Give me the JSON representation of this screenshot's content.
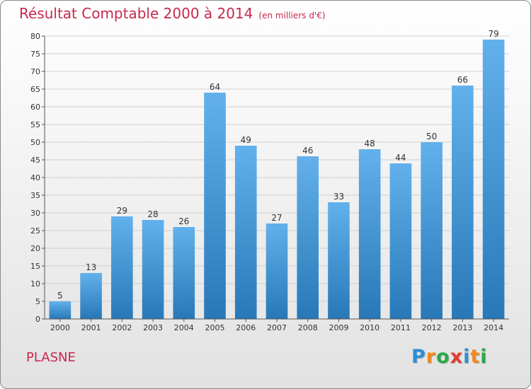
{
  "header": {
    "title": "Résultat Comptable 2000 à 2014",
    "subtitle": "(en milliers d'€)"
  },
  "footer": {
    "commune": "PLASNE",
    "logo_letters": [
      "P",
      "r",
      "o",
      "x",
      "i",
      "t",
      "i"
    ],
    "logo_colors": [
      "#2a8fd6",
      "#f08a1e",
      "#2aa84a",
      "#e23b2e",
      "#2a8fd6",
      "#f08a1e",
      "#2aa84a"
    ]
  },
  "colors": {
    "bar_top": "#62b1ec",
    "bar_bottom": "#2878b8",
    "grid": "#cfcfcf",
    "axis": "#555555"
  },
  "chart_data": {
    "type": "bar",
    "title": "Résultat Comptable 2000 à 2014",
    "subtitle": "(en milliers d'€)",
    "categories": [
      "2000",
      "2001",
      "2002",
      "2003",
      "2004",
      "2005",
      "2006",
      "2007",
      "2008",
      "2009",
      "2010",
      "2011",
      "2012",
      "2013",
      "2014"
    ],
    "values": [
      5,
      13,
      29,
      28,
      26,
      64,
      49,
      27,
      46,
      33,
      48,
      44,
      50,
      66,
      79
    ],
    "ylim": [
      0,
      80
    ],
    "yticks": [
      0,
      5,
      10,
      15,
      20,
      25,
      30,
      35,
      40,
      45,
      50,
      55,
      60,
      65,
      70,
      75,
      80
    ],
    "grid": true,
    "legend": "none"
  }
}
